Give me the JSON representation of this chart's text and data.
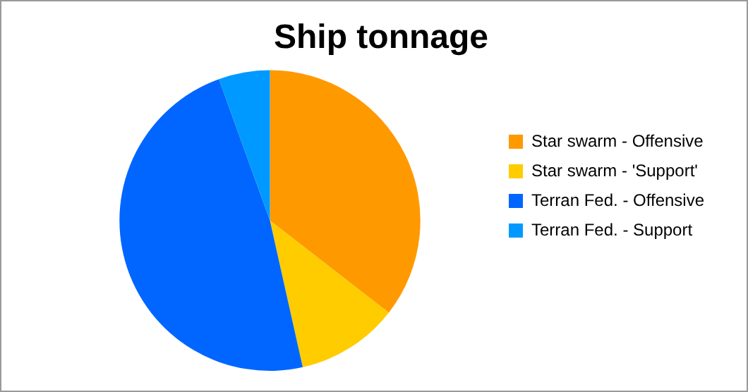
{
  "chart_data": {
    "type": "pie",
    "title": "Ship tonnage",
    "categories": [
      "Star swarm - Offensive",
      "Star swarm - 'Support'",
      "Terran Fed. - Offensive",
      "Terran Fed. - Support"
    ],
    "values": [
      35.5,
      11,
      48,
      5.5
    ],
    "colors": [
      "#ff9900",
      "#ffcc00",
      "#0066ff",
      "#0099ff"
    ],
    "legend": "right"
  }
}
